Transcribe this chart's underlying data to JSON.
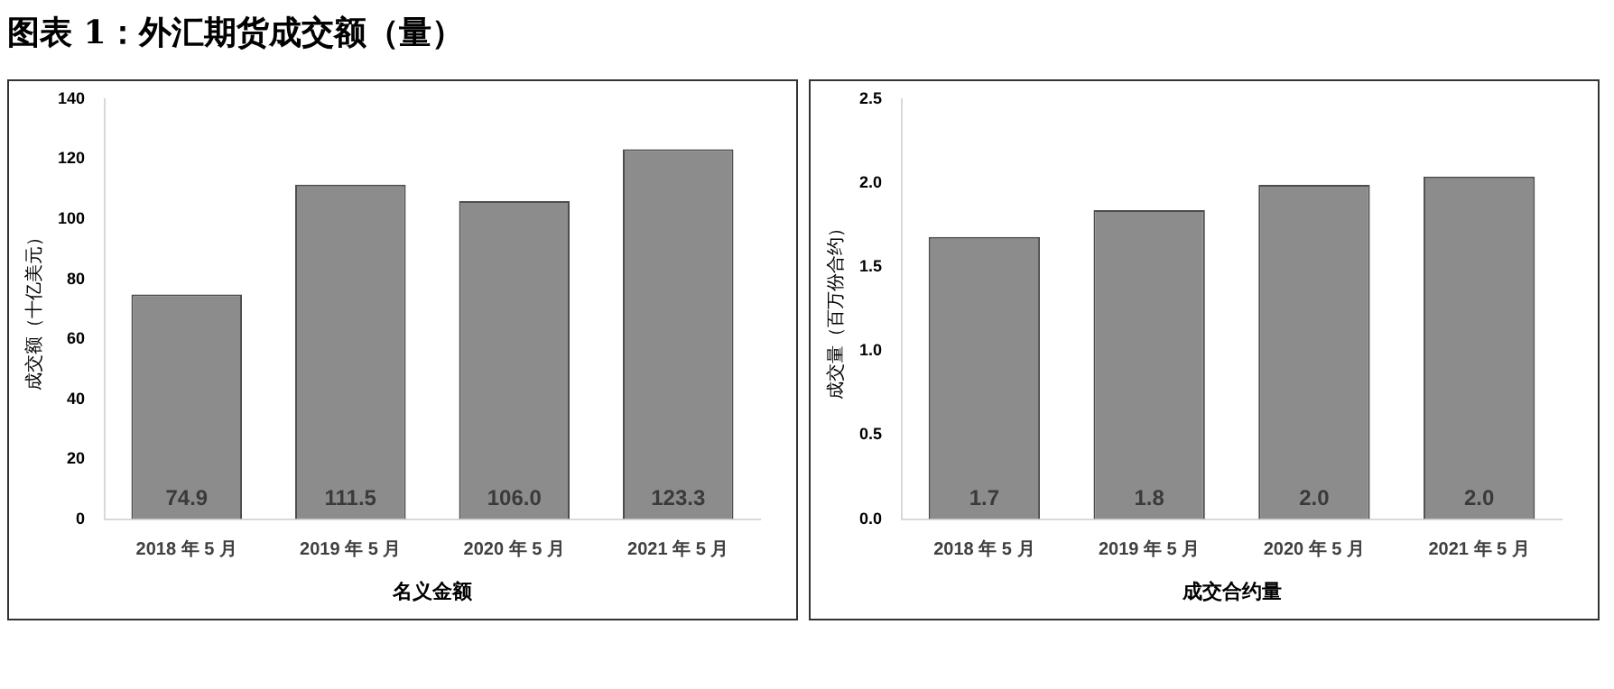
{
  "chart_data": [
    {
      "type": "bar",
      "title": "图表 1：外汇期货成交额（量）",
      "xlabel": "名义金额",
      "ylabel": "成交额（十亿美元）",
      "categories": [
        "2018 年 5 月",
        "2019 年 5 月",
        "2020 年 5 月",
        "2021 年 5 月"
      ],
      "values": [
        74.9,
        111.5,
        106.0,
        123.3
      ],
      "value_labels": [
        "74.9",
        "111.5",
        "106.0",
        "123.3"
      ],
      "color": "#8c8c8c",
      "ylim": [
        0,
        140
      ],
      "yticks": [
        0,
        20,
        40,
        60,
        80,
        100,
        120,
        140
      ]
    },
    {
      "type": "bar",
      "xlabel": "成交合约量",
      "ylabel": "成交量（百万份合约）",
      "categories": [
        "2018 年 5 月",
        "2019 年 5 月",
        "2020 年 5 月",
        "2021 年 5 月"
      ],
      "values": [
        1.68,
        1.84,
        1.99,
        2.04
      ],
      "value_labels": [
        "1.7",
        "1.8",
        "2.0",
        "2.0"
      ],
      "color": "#8c8c8c",
      "ylim": [
        0,
        2.5
      ],
      "yticks": [
        {
          "value": 0,
          "label": "0.0"
        },
        0.5,
        {
          "value": 1,
          "label": "1.0"
        },
        1.5,
        {
          "value": 2,
          "label": "2.0"
        },
        2.5
      ]
    }
  ]
}
